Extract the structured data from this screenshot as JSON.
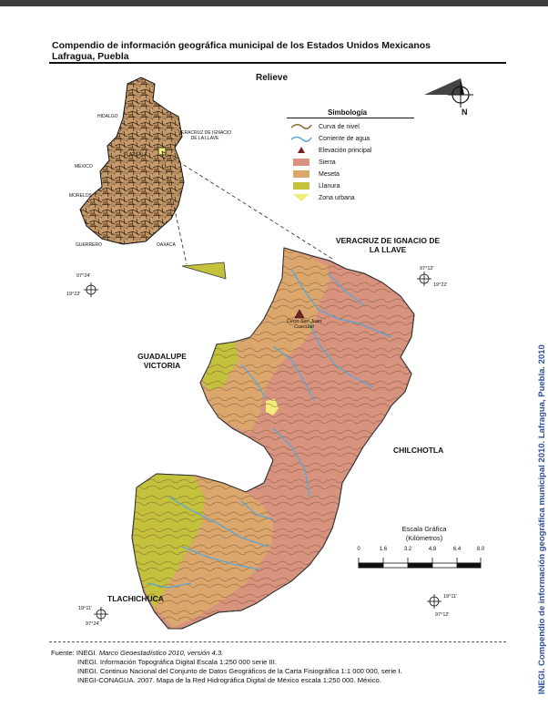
{
  "header": {
    "title_line1": "Compendio de información geográfica municipal de los Estados Unidos Mexicanos",
    "title_line2": "Lafragua, Puebla"
  },
  "map_title": "Relieve",
  "legend": {
    "title": "Simbología",
    "items": [
      {
        "label": "Curva de nivel",
        "symbol": "contour-line",
        "color": "#8a6a3c"
      },
      {
        "label": "Corriente de agua",
        "symbol": "water-line",
        "color": "#5aa7d8"
      },
      {
        "label": "Elevación principal",
        "symbol": "peak-triangle",
        "color": "#7a1f1f"
      },
      {
        "label": "Sierra",
        "symbol": "fill",
        "color": "#d8937f"
      },
      {
        "label": "Meseta",
        "symbol": "fill",
        "color": "#dba76c"
      },
      {
        "label": "Llanura",
        "symbol": "fill",
        "color": "#c4c23c"
      },
      {
        "label": "Zona urbana",
        "symbol": "fill",
        "color": "#f2ec78"
      }
    ]
  },
  "locator": {
    "labels": [
      "HIDALGO",
      "VERACRUZ DE IGNACIO DE LA LLAVE",
      "TLAXCALA",
      "MÉXICO",
      "MORELOS",
      "GUERRERO",
      "OAXACA"
    ],
    "coord_lon": "97°24'",
    "coord_lat": "19°22'"
  },
  "neighbors": {
    "north": "VERACRUZ DE IGNACIO DE LA LLAVE",
    "west": "GUADALUPE VICTORIA",
    "east": "CHILCHOTLA",
    "south": "TLACHICHUCA"
  },
  "peak_label": "Cerro San Juan Cuecuatl",
  "coords": {
    "top_right_lon": "97°12'",
    "top_right_lat": "19°22'",
    "bottom_right_lat": "19°11'",
    "bottom_right_lon": "97°12'",
    "bottom_left_lat": "19°11'",
    "bottom_left_lon": "97°24'"
  },
  "north_arrow": "N",
  "scale": {
    "title": "Escala Gráfica",
    "unit": "(Kilómetros)",
    "ticks": [
      "0",
      "1.6",
      "3.2",
      "4.8",
      "6.4",
      "8.0"
    ]
  },
  "sources": {
    "prefix": "Fuente:",
    "line1": "INEGI.",
    "line1_italic": "Marco Geoestadístico 2010, versión 4.3.",
    "line2": "INEGI. Información Topográfica Digital Escala 1:250 000 serie III.",
    "line3": "INEGI. Continuo Nacional del Conjunto de Datos Geográficos de la Carta Fisiográfica 1:1 000 000, serie I.",
    "line4": "INEGI-CONAGUA. 2007. Mapa de la Red Hidrográfica Digital de México escala 1:250 000. México."
  },
  "side_text": "INEGI. Compendio de información geográfica municipal 2010. Lafragua, Puebla. 2010"
}
